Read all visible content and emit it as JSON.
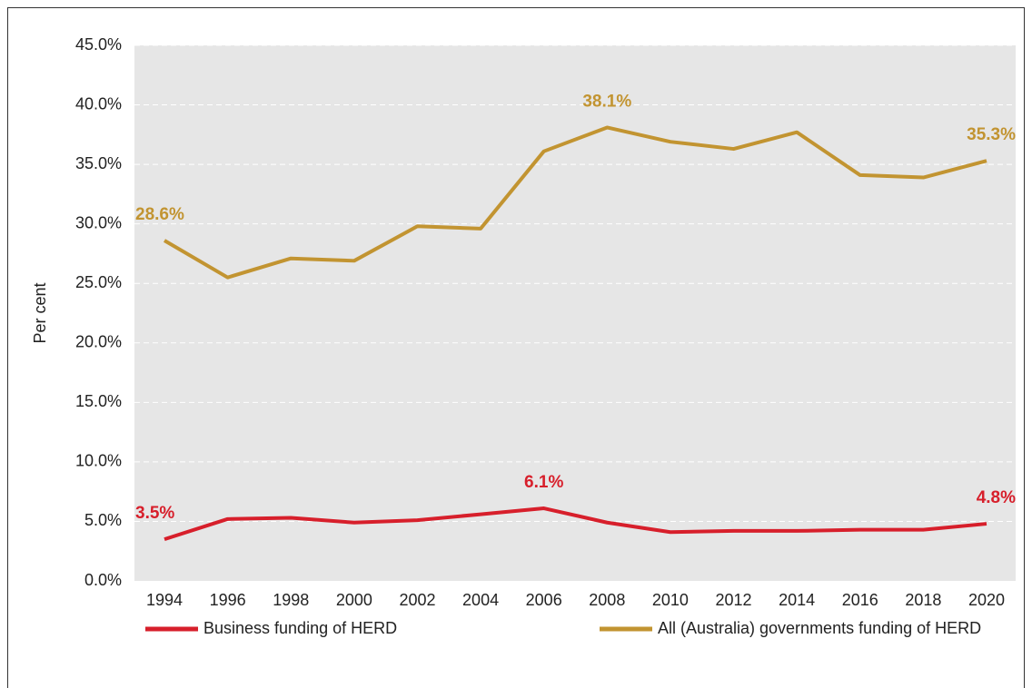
{
  "chart_data": {
    "type": "line",
    "y_label": "Per cent",
    "categories": [
      "1994",
      "1996",
      "1998",
      "2000",
      "2002",
      "2004",
      "2006",
      "2008",
      "2010",
      "2012",
      "2014",
      "2016",
      "2018",
      "2020"
    ],
    "series": [
      {
        "name": "Business funding of HERD",
        "color": "#d71f2b",
        "values": [
          3.5,
          5.2,
          5.3,
          4.9,
          5.1,
          5.6,
          6.1,
          4.9,
          4.1,
          4.2,
          4.2,
          4.3,
          4.3,
          4.8
        ],
        "value_labels": [
          "3.5%",
          null,
          null,
          null,
          null,
          null,
          "6.1%",
          null,
          null,
          null,
          null,
          null,
          null,
          "4.8%"
        ]
      },
      {
        "name": "All (Australia) governments funding of HERD",
        "color": "#c29431",
        "values": [
          28.6,
          25.5,
          27.1,
          26.9,
          29.8,
          29.6,
          36.1,
          38.1,
          36.9,
          36.3,
          37.7,
          34.1,
          33.9,
          35.3
        ],
        "value_labels": [
          "28.6%",
          null,
          null,
          null,
          null,
          null,
          null,
          "38.1%",
          null,
          null,
          null,
          null,
          null,
          "35.3%"
        ]
      }
    ],
    "ylim": [
      0,
      45
    ],
    "yticks": [
      {
        "value": 0,
        "label": "0.0%"
      },
      {
        "value": 5,
        "label": "5.0%"
      },
      {
        "value": 10,
        "label": "10.0%"
      },
      {
        "value": 15,
        "label": "15.0%"
      },
      {
        "value": 20,
        "label": "20.0%"
      },
      {
        "value": 25,
        "label": "25.0%"
      },
      {
        "value": 30,
        "label": "30.0%"
      },
      {
        "value": 35,
        "label": "35.0%"
      },
      {
        "value": 40,
        "label": "40.0%"
      },
      {
        "value": 45,
        "label": "45.0%"
      }
    ],
    "grid": true,
    "legend": "bottom"
  }
}
